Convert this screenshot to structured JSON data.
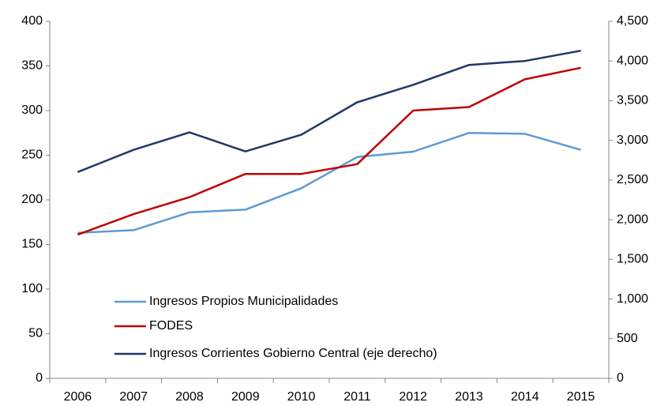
{
  "chart_data": {
    "type": "line",
    "categories": [
      "2006",
      "2007",
      "2008",
      "2009",
      "2010",
      "2011",
      "2012",
      "2013",
      "2014",
      "2015"
    ],
    "series": [
      {
        "name": "Ingresos Propios Municipalidades",
        "color": "#5b9bd5",
        "values": [
          163,
          166,
          186,
          189,
          213,
          248,
          254,
          275,
          274,
          256
        ]
      },
      {
        "name": "FODES",
        "color": "#c00000",
        "values": [
          161,
          184,
          203,
          229,
          229,
          240,
          300,
          304,
          335,
          348
        ]
      },
      {
        "name": "Ingresos Corrientes Gobierno Central (eje derecho)",
        "color": "#1f3864",
        "axis": "y2",
        "values": [
          2600,
          2880,
          3100,
          2860,
          3070,
          3480,
          3700,
          3950,
          4000,
          4130
        ]
      }
    ],
    "ylim": [
      0,
      400
    ],
    "yticks": [
      0,
      50,
      100,
      150,
      200,
      250,
      300,
      350,
      400
    ],
    "y2lim": [
      0,
      4500
    ],
    "y2ticks": [
      0,
      500,
      {
        "value": 1000,
        "label": "1,000"
      },
      {
        "value": 1500,
        "label": "1,500"
      },
      {
        "value": 2000,
        "label": "2,000"
      },
      {
        "value": 2500,
        "label": "2,500"
      },
      {
        "value": 3000,
        "label": "3,000"
      },
      {
        "value": 3500,
        "label": "3,500"
      },
      {
        "value": 4000,
        "label": "4,000"
      },
      {
        "value": 4500,
        "label": "4,500"
      }
    ],
    "legend": "lower left",
    "grid": false
  }
}
